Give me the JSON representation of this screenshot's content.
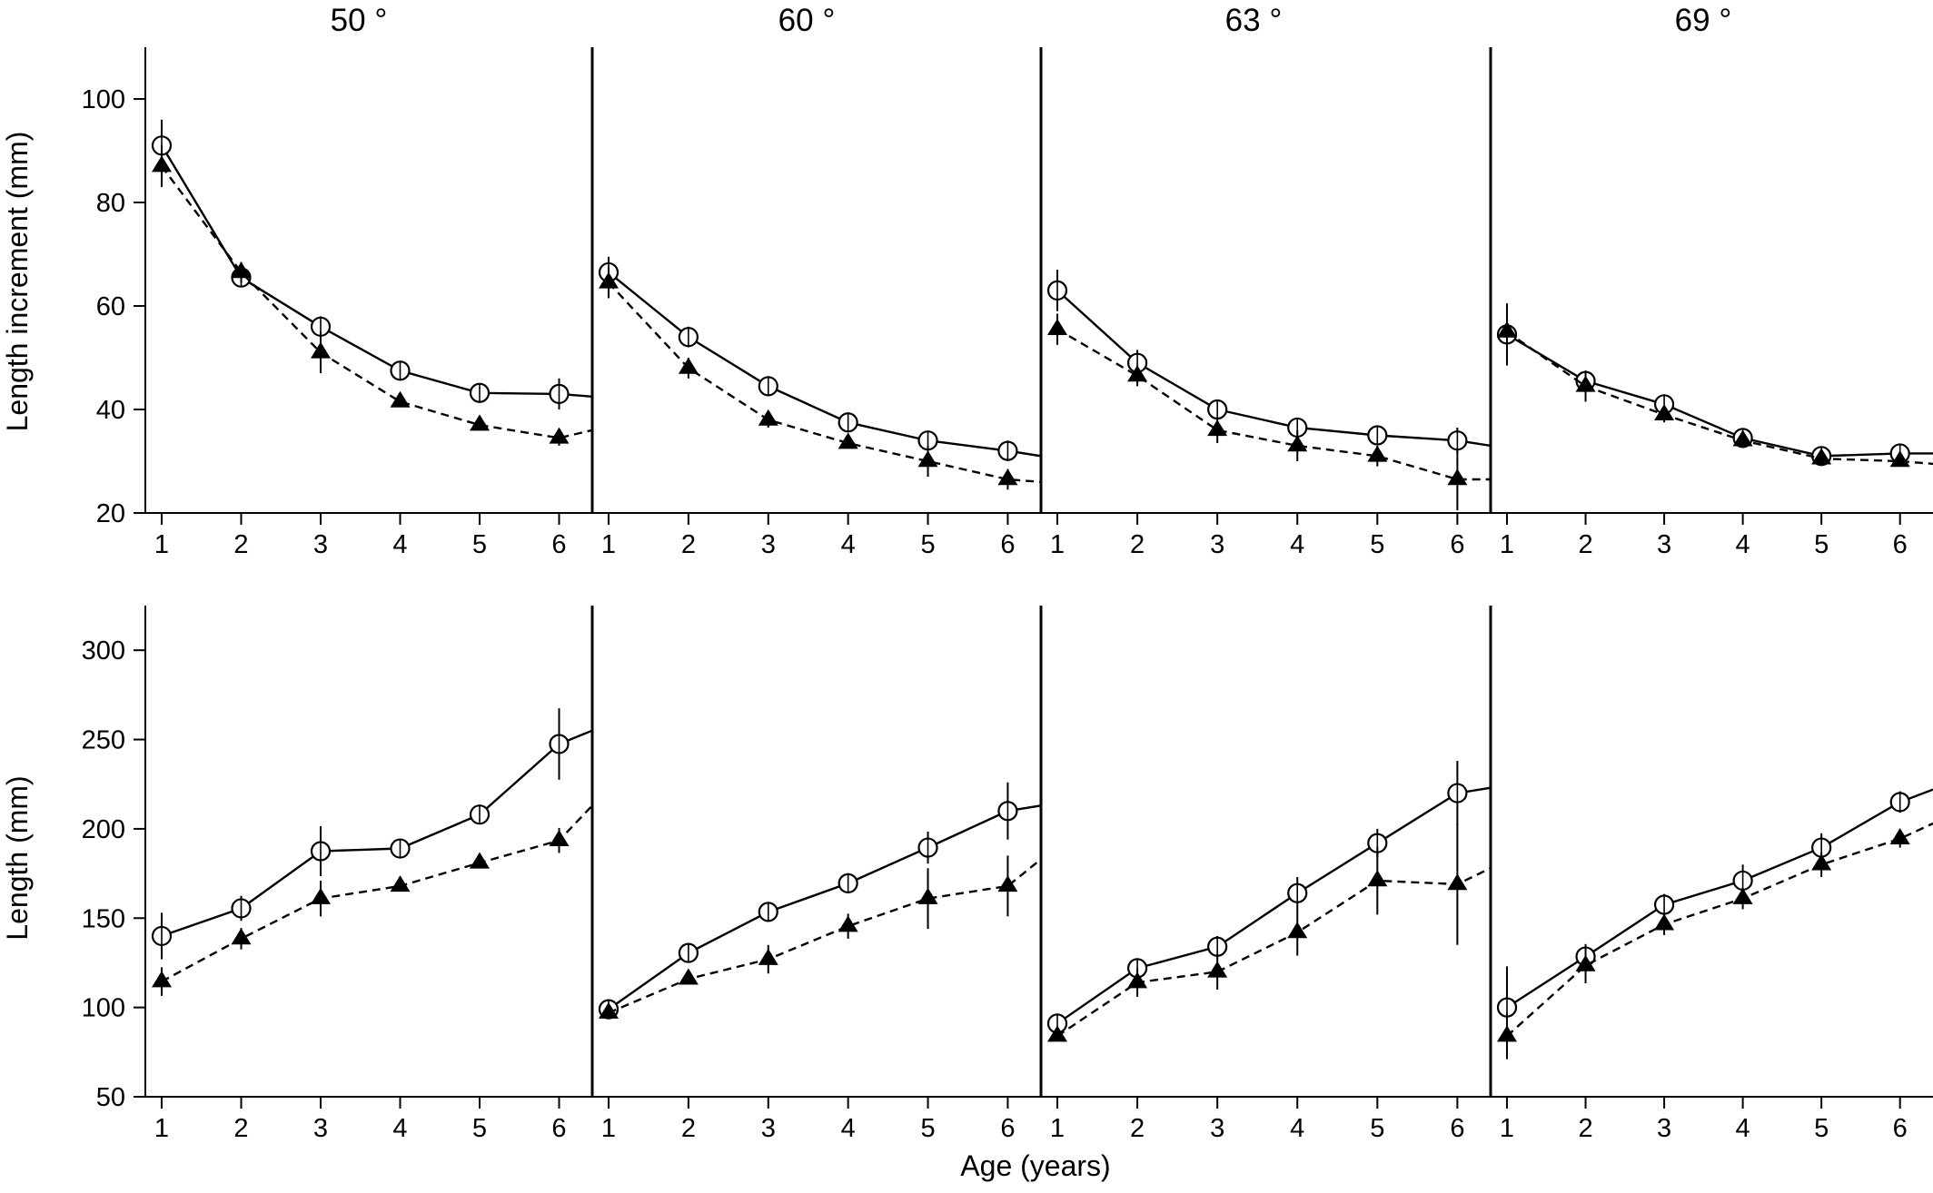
{
  "figure": {
    "panel_titles": [
      "50 °",
      "60 °",
      "63 °",
      "69 °"
    ],
    "x_axis_label": "Age (years)",
    "row_y_labels": [
      "Length increment (mm)",
      "Length (mm)"
    ]
  },
  "chart_data": [
    {
      "type": "line",
      "title": "50 °",
      "ylabel": "Length increment (mm)",
      "x": [
        1,
        2,
        3,
        4,
        5,
        6
      ],
      "xlim": [
        0.8,
        6.3
      ],
      "ylim": [
        20,
        110
      ],
      "yticks": [
        20,
        40,
        60,
        80,
        100
      ],
      "series": [
        {
          "marker": "open-circle",
          "line": "solid",
          "values": [
            91,
            65.5,
            56,
            47.5,
            43.2,
            43
          ],
          "err": [
            5,
            1,
            2,
            1,
            1,
            3
          ],
          "extend_to": 42.5
        },
        {
          "marker": "filled-triangle",
          "line": "dashed",
          "values": [
            87,
            66.5,
            51,
            41.5,
            37,
            34.5
          ],
          "err": [
            4,
            2,
            4,
            1,
            1,
            1.5
          ],
          "extend_to": 36
        }
      ]
    },
    {
      "type": "line",
      "title": "60 °",
      "ylabel": "Length increment (mm)",
      "x": [
        1,
        2,
        3,
        4,
        5,
        6
      ],
      "xlim": [
        0.8,
        6.3
      ],
      "ylim": [
        20,
        110
      ],
      "yticks": [
        20,
        40,
        60,
        80,
        100
      ],
      "series": [
        {
          "marker": "open-circle",
          "line": "solid",
          "values": [
            66.5,
            54,
            44.5,
            37.5,
            34,
            32
          ],
          "err": [
            3,
            2,
            1,
            1,
            1,
            2
          ],
          "extend_to": 31
        },
        {
          "marker": "filled-triangle",
          "line": "dashed",
          "values": [
            64.5,
            48,
            38,
            33.5,
            30,
            26.5
          ],
          "err": [
            3,
            2,
            1.5,
            1,
            3,
            2
          ],
          "extend_to": 26
        }
      ]
    },
    {
      "type": "line",
      "title": "63 °",
      "ylabel": "Length increment (mm)",
      "x": [
        1,
        2,
        3,
        4,
        5,
        6
      ],
      "xlim": [
        0.8,
        6.3
      ],
      "ylim": [
        20,
        110
      ],
      "yticks": [
        20,
        40,
        60,
        80,
        100
      ],
      "series": [
        {
          "marker": "open-circle",
          "line": "solid",
          "values": [
            63,
            49,
            40,
            36.5,
            35,
            34
          ],
          "err": [
            4,
            2.5,
            1,
            1,
            1,
            2.5
          ],
          "extend_to": 33
        },
        {
          "marker": "filled-triangle",
          "line": "dashed",
          "values": [
            55.5,
            46.5,
            36,
            33,
            31,
            26.5
          ],
          "err": [
            3,
            2,
            2.5,
            3,
            2,
            6
          ],
          "extend_to": 26.5
        }
      ]
    },
    {
      "type": "line",
      "title": "69 °",
      "ylabel": "Length increment (mm)",
      "x": [
        1,
        2,
        3,
        4,
        5,
        6
      ],
      "xlim": [
        0.8,
        6.3
      ],
      "ylim": [
        20,
        110
      ],
      "yticks": [
        20,
        40,
        60,
        80,
        100
      ],
      "series": [
        {
          "marker": "open-circle",
          "line": "solid",
          "values": [
            54.5,
            45.5,
            41,
            34.5,
            31,
            31.5
          ],
          "err": [
            6,
            2,
            1,
            1,
            1,
            1
          ],
          "extend_to": 31.5
        },
        {
          "marker": "filled-triangle",
          "line": "dashed",
          "values": [
            55,
            44.5,
            39,
            34,
            30.5,
            30
          ],
          "err": [
            3,
            3,
            1.5,
            1,
            1,
            1
          ],
          "extend_to": 29.5
        }
      ]
    },
    {
      "type": "line",
      "title": "50 °",
      "ylabel": "Length (mm)",
      "x": [
        1,
        2,
        3,
        4,
        5,
        6
      ],
      "xlim": [
        0.8,
        6.3
      ],
      "ylim": [
        50,
        325
      ],
      "yticks": [
        50,
        100,
        150,
        200,
        250,
        300
      ],
      "series": [
        {
          "marker": "open-circle",
          "line": "solid",
          "values": [
            140,
            155.5,
            187.5,
            189,
            208,
            247.5
          ],
          "err": [
            13,
            7,
            14,
            4,
            5,
            20
          ],
          "extend_to": 255
        },
        {
          "marker": "filled-triangle",
          "line": "dashed",
          "values": [
            114.5,
            138.5,
            161,
            168,
            181,
            193.5
          ],
          "err": [
            8,
            6,
            10,
            3,
            2,
            7
          ],
          "extend_to": 213
        }
      ]
    },
    {
      "type": "line",
      "title": "60 °",
      "ylabel": "Length (mm)",
      "x": [
        1,
        2,
        3,
        4,
        5,
        6
      ],
      "xlim": [
        0.8,
        6.3
      ],
      "ylim": [
        50,
        325
      ],
      "yticks": [
        50,
        100,
        150,
        200,
        250,
        300
      ],
      "series": [
        {
          "marker": "open-circle",
          "line": "solid",
          "values": [
            99,
            130.5,
            153.5,
            169.5,
            189.5,
            210
          ],
          "err": [
            2,
            4,
            4,
            4,
            9,
            16
          ],
          "extend_to": 213
        },
        {
          "marker": "filled-triangle",
          "line": "dashed",
          "values": [
            97,
            116,
            127,
            145.5,
            161,
            168
          ],
          "err": [
            2,
            3,
            8,
            7,
            17,
            17
          ],
          "extend_to": 183
        }
      ]
    },
    {
      "type": "line",
      "title": "63 °",
      "ylabel": "Length (mm)",
      "x": [
        1,
        2,
        3,
        4,
        5,
        6
      ],
      "xlim": [
        0.8,
        6.3
      ],
      "ylim": [
        50,
        325
      ],
      "yticks": [
        50,
        100,
        150,
        200,
        250,
        300
      ],
      "series": [
        {
          "marker": "open-circle",
          "line": "solid",
          "values": [
            91,
            122,
            134,
            164,
            192,
            220
          ],
          "err": [
            2,
            5,
            6,
            9,
            8,
            18
          ],
          "extend_to": 223
        },
        {
          "marker": "filled-triangle",
          "line": "dashed",
          "values": [
            84,
            114,
            120,
            142,
            171,
            169
          ],
          "err": [
            3,
            8,
            10,
            13,
            19,
            34
          ],
          "extend_to": 178
        }
      ]
    },
    {
      "type": "line",
      "title": "69 °",
      "ylabel": "Length (mm)",
      "x": [
        1,
        2,
        3,
        4,
        5,
        6
      ],
      "xlim": [
        0.8,
        6.3
      ],
      "ylim": [
        50,
        325
      ],
      "yticks": [
        50,
        100,
        150,
        200,
        250,
        300
      ],
      "series": [
        {
          "marker": "open-circle",
          "line": "solid",
          "values": [
            100,
            128.5,
            157.5,
            171,
            189.5,
            215
          ],
          "err": [
            23,
            7,
            6,
            9,
            8,
            6
          ],
          "extend_to": 222
        },
        {
          "marker": "filled-triangle",
          "line": "dashed",
          "values": [
            84,
            123.5,
            146.5,
            161,
            180,
            194.5
          ],
          "err": [
            13,
            10,
            6,
            6,
            7,
            5
          ],
          "extend_to": 203
        }
      ]
    }
  ]
}
